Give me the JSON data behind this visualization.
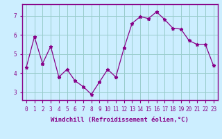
{
  "x": [
    0,
    1,
    2,
    3,
    4,
    5,
    6,
    7,
    8,
    9,
    10,
    11,
    12,
    13,
    14,
    15,
    16,
    17,
    18,
    19,
    20,
    21,
    22,
    23
  ],
  "y": [
    4.3,
    5.9,
    4.5,
    5.4,
    3.8,
    4.2,
    3.6,
    3.3,
    2.9,
    3.55,
    4.2,
    3.8,
    5.3,
    6.6,
    6.95,
    6.85,
    7.2,
    6.8,
    6.35,
    6.3,
    5.7,
    5.5,
    5.5,
    4.4
  ],
  "line_color": "#880088",
  "marker": "*",
  "bg_color": "#cceeff",
  "grid_color": "#99cccc",
  "xlabel": "Windchill (Refroidissement éolien,°C)",
  "ylabel_ticks": [
    3,
    4,
    5,
    6,
    7
  ],
  "ylim": [
    2.6,
    7.6
  ],
  "xlim": [
    -0.5,
    23.5
  ],
  "tick_fontsize": 5.5,
  "label_fontsize": 6.5,
  "border_color": "#880088"
}
